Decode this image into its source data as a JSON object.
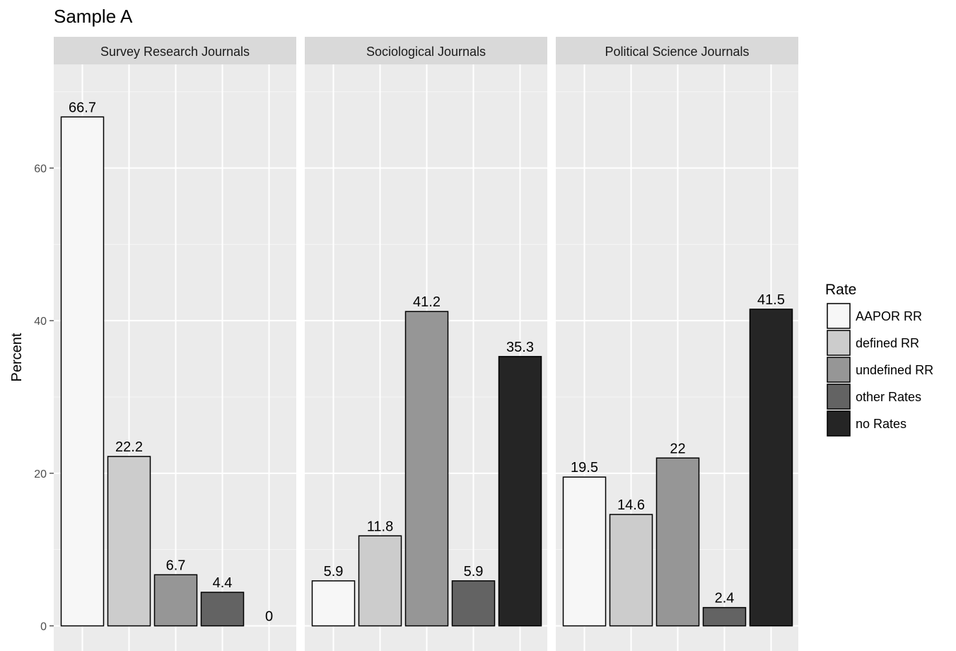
{
  "chart_data": {
    "type": "bar",
    "title": "Sample A",
    "xlabel": "",
    "ylabel": "Percent",
    "ylim": [
      0,
      70
    ],
    "yticks": [
      0,
      20,
      40,
      60
    ],
    "grid": true,
    "legend": {
      "title": "Rate",
      "position": "right",
      "entries": [
        {
          "label": "AAPOR RR",
          "color": "#f7f7f7"
        },
        {
          "label": "defined RR",
          "color": "#cccccc"
        },
        {
          "label": "undefined RR",
          "color": "#969696"
        },
        {
          "label": "other Rates",
          "color": "#636363"
        },
        {
          "label": "no Rates",
          "color": "#252525"
        }
      ]
    },
    "categories": [
      "AAPOR RR",
      "defined RR",
      "undefined RR",
      "other Rates",
      "no Rates"
    ],
    "panels": [
      {
        "name": "Survey Research Journals",
        "values": [
          66.7,
          22.2,
          6.7,
          4.4,
          0
        ],
        "labels": [
          "66.7",
          "22.2",
          "6.7",
          "4.4",
          "0"
        ]
      },
      {
        "name": "Sociological Journals",
        "values": [
          5.9,
          11.8,
          41.2,
          5.9,
          35.3
        ],
        "labels": [
          "5.9",
          "11.8",
          "41.2",
          "5.9",
          "35.3"
        ]
      },
      {
        "name": "Political Science Journals",
        "values": [
          19.5,
          14.6,
          22,
          2.4,
          41.5
        ],
        "labels": [
          "19.5",
          "14.6",
          "22",
          "2.4",
          "41.5"
        ]
      }
    ]
  }
}
